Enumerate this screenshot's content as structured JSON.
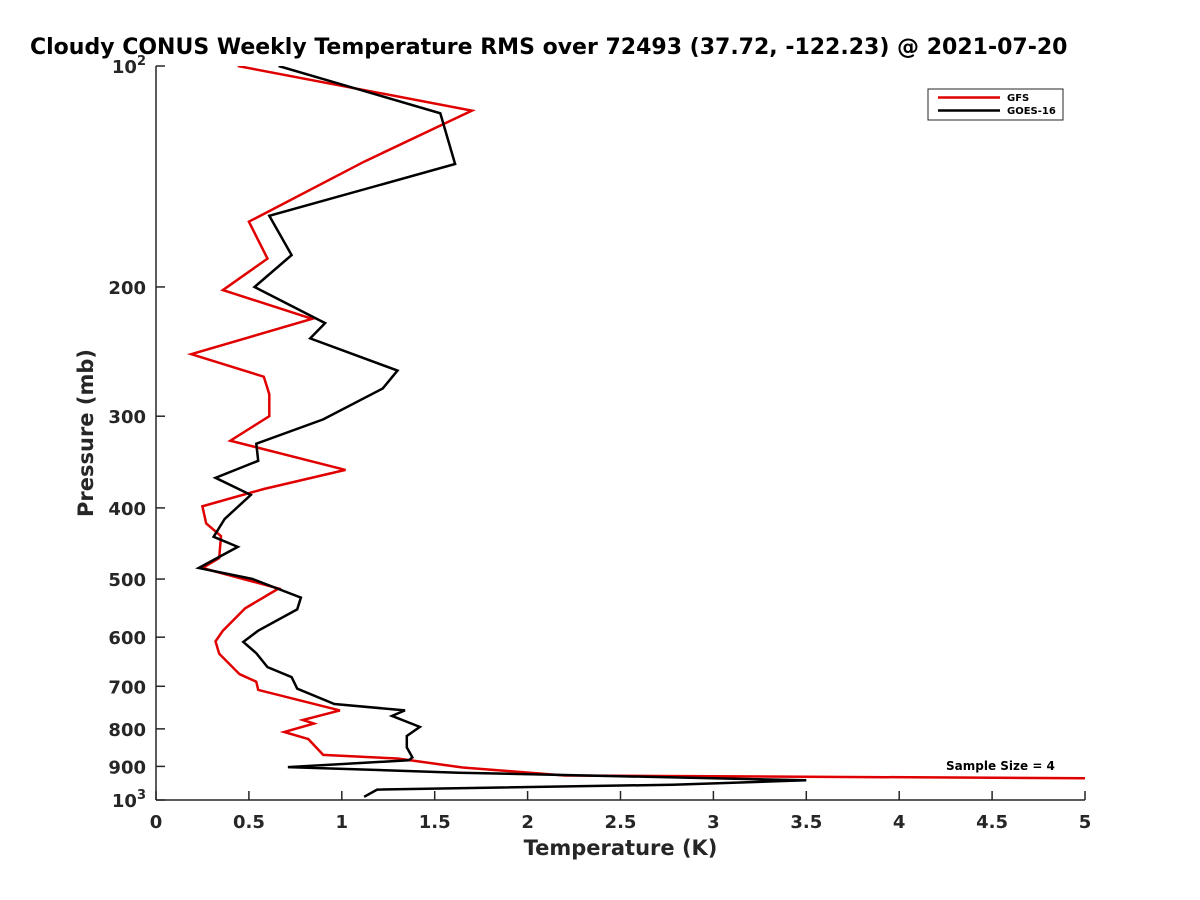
{
  "chart_data": {
    "type": "line",
    "title": "Cloudy CONUS Weekly Temperature RMS over 72493 (37.72, -122.23) @ 2021-07-20",
    "xlabel": "Temperature (K)",
    "ylabel": "Pressure (mb)",
    "xlim": [
      0,
      5
    ],
    "ylim": [
      100,
      1000
    ],
    "y_scale": "log",
    "y_direction": "reverse",
    "grid": false,
    "legend_position": "top-right",
    "x_ticks": [
      {
        "value": 0,
        "label": "0"
      },
      {
        "value": 0.5,
        "label": "0.5"
      },
      {
        "value": 1,
        "label": "1"
      },
      {
        "value": 1.5,
        "label": "1.5"
      },
      {
        "value": 2,
        "label": "2"
      },
      {
        "value": 2.5,
        "label": "2.5"
      },
      {
        "value": 3,
        "label": "3"
      },
      {
        "value": 3.5,
        "label": "3.5"
      },
      {
        "value": 4,
        "label": "4"
      },
      {
        "value": 4.5,
        "label": "4.5"
      },
      {
        "value": 5,
        "label": "5"
      }
    ],
    "y_ticks": [
      {
        "value": 100,
        "label": "10",
        "sup": "2"
      },
      {
        "value": 200,
        "label": "200",
        "sup": ""
      },
      {
        "value": 300,
        "label": "300",
        "sup": ""
      },
      {
        "value": 400,
        "label": "400",
        "sup": ""
      },
      {
        "value": 500,
        "label": "500",
        "sup": ""
      },
      {
        "value": 600,
        "label": "600",
        "sup": ""
      },
      {
        "value": 700,
        "label": "700",
        "sup": ""
      },
      {
        "value": 800,
        "label": "800",
        "sup": ""
      },
      {
        "value": 900,
        "label": "900",
        "sup": ""
      },
      {
        "value": 1000,
        "label": "10",
        "sup": "3"
      }
    ],
    "series": [
      {
        "name": "GFS",
        "color": "#e00000",
        "points": [
          [
            0.44,
            100
          ],
          [
            1.7,
            115
          ],
          [
            1.12,
            135
          ],
          [
            0.5,
            163
          ],
          [
            0.6,
            183
          ],
          [
            0.36,
            202
          ],
          [
            0.84,
            221
          ],
          [
            0.19,
            247
          ],
          [
            0.58,
            265
          ],
          [
            0.61,
            280
          ],
          [
            0.61,
            300
          ],
          [
            0.4,
            324
          ],
          [
            1.02,
            355
          ],
          [
            0.58,
            377
          ],
          [
            0.25,
            398
          ],
          [
            0.27,
            420
          ],
          [
            0.35,
            437
          ],
          [
            0.34,
            468
          ],
          [
            0.25,
            483
          ],
          [
            0.66,
            515
          ],
          [
            0.48,
            548
          ],
          [
            0.36,
            588
          ],
          [
            0.32,
            608
          ],
          [
            0.34,
            632
          ],
          [
            0.45,
            674
          ],
          [
            0.54,
            690
          ],
          [
            0.55,
            708
          ],
          [
            0.99,
            755
          ],
          [
            0.79,
            778
          ],
          [
            0.85,
            787
          ],
          [
            0.69,
            808
          ],
          [
            0.82,
            826
          ],
          [
            0.9,
            868
          ],
          [
            1.3,
            878
          ],
          [
            1.65,
            903
          ],
          [
            2.2,
            926
          ],
          [
            5.0,
            934
          ]
        ]
      },
      {
        "name": "GOES-16",
        "color": "#000000",
        "points": [
          [
            0.66,
            100
          ],
          [
            1.53,
            116
          ],
          [
            1.61,
            136
          ],
          [
            0.61,
            160
          ],
          [
            0.73,
            181
          ],
          [
            0.53,
            200
          ],
          [
            0.91,
            224
          ],
          [
            0.83,
            235
          ],
          [
            1.3,
            260
          ],
          [
            1.22,
            275
          ],
          [
            0.9,
            303
          ],
          [
            0.54,
            327
          ],
          [
            0.55,
            345
          ],
          [
            0.32,
            364
          ],
          [
            0.51,
            384
          ],
          [
            0.37,
            414
          ],
          [
            0.31,
            438
          ],
          [
            0.44,
            452
          ],
          [
            0.23,
            483
          ],
          [
            0.52,
            500
          ],
          [
            0.78,
            530
          ],
          [
            0.76,
            550
          ],
          [
            0.55,
            588
          ],
          [
            0.47,
            609
          ],
          [
            0.54,
            631
          ],
          [
            0.6,
            659
          ],
          [
            0.73,
            680
          ],
          [
            0.76,
            705
          ],
          [
            0.96,
            740
          ],
          [
            1.34,
            755
          ],
          [
            1.27,
            768
          ],
          [
            1.42,
            795
          ],
          [
            1.35,
            818
          ],
          [
            1.35,
            848
          ],
          [
            1.38,
            875
          ],
          [
            1.36,
            883
          ],
          [
            0.71,
            902
          ],
          [
            1.63,
            918
          ],
          [
            3.5,
            940
          ],
          [
            2.78,
            953
          ],
          [
            1.19,
            968
          ],
          [
            1.12,
            990
          ]
        ]
      }
    ],
    "annotations": [
      {
        "text": "Sample Size = 4"
      }
    ]
  },
  "colors": {
    "axes": "#262626",
    "background": "#ffffff",
    "gfs": "#e00000",
    "goes": "#000000"
  }
}
